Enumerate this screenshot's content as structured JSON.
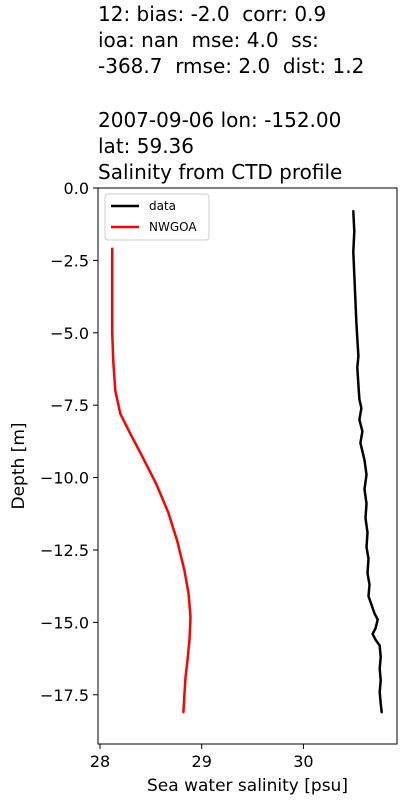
{
  "header": {
    "stats_line1": "12: bias: -2.0  corr: 0.9",
    "stats_line2": "ioa: nan  mse: 4.0  ss:",
    "stats_line3": "-368.7  rmse: 2.0  dist: 1.2",
    "date_line": "2007-09-06 lon: -152.00",
    "lat_line": "lat: 59.36",
    "subtitle": "Salinity from CTD profile"
  },
  "chart_data": {
    "type": "line",
    "xlabel": "Sea water salinity [psu]",
    "ylabel": "Depth [m]",
    "xlim": [
      27.98,
      30.92
    ],
    "ylim": [
      -19.2,
      0.0
    ],
    "xticks": [
      28,
      29,
      30
    ],
    "xtick_labels": [
      "28",
      "29",
      "30"
    ],
    "yticks": [
      0.0,
      -2.5,
      -5.0,
      -7.5,
      -10.0,
      -12.5,
      -15.0,
      -17.5
    ],
    "ytick_labels": [
      "0.0",
      "−2.5",
      "−5.0",
      "−7.5",
      "−10.0",
      "−12.5",
      "−15.0",
      "−17.5"
    ],
    "legend_position": "top-left",
    "series": [
      {
        "name": "data",
        "color": "#000000",
        "points": [
          [
            30.49,
            -0.8
          ],
          [
            30.5,
            -1.5
          ],
          [
            30.49,
            -2.2
          ],
          [
            30.5,
            -3.0
          ],
          [
            30.51,
            -3.8
          ],
          [
            30.52,
            -4.6
          ],
          [
            30.53,
            -5.2
          ],
          [
            30.54,
            -5.8
          ],
          [
            30.53,
            -6.2
          ],
          [
            30.54,
            -6.8
          ],
          [
            30.55,
            -7.3
          ],
          [
            30.57,
            -7.6
          ],
          [
            30.55,
            -8.0
          ],
          [
            30.58,
            -8.4
          ],
          [
            30.56,
            -8.8
          ],
          [
            30.6,
            -9.4
          ],
          [
            30.62,
            -9.9
          ],
          [
            30.6,
            -10.4
          ],
          [
            30.62,
            -10.9
          ],
          [
            30.61,
            -11.4
          ],
          [
            30.63,
            -11.9
          ],
          [
            30.62,
            -12.4
          ],
          [
            30.64,
            -12.8
          ],
          [
            30.63,
            -13.3
          ],
          [
            30.65,
            -13.7
          ],
          [
            30.64,
            -14.1
          ],
          [
            30.67,
            -14.4
          ],
          [
            30.7,
            -14.7
          ],
          [
            30.73,
            -14.9
          ],
          [
            30.71,
            -15.2
          ],
          [
            30.68,
            -15.4
          ],
          [
            30.71,
            -15.6
          ],
          [
            30.75,
            -15.8
          ],
          [
            30.76,
            -16.2
          ],
          [
            30.75,
            -16.6
          ],
          [
            30.76,
            -17.0
          ],
          [
            30.75,
            -17.4
          ],
          [
            30.76,
            -17.8
          ],
          [
            30.77,
            -18.1
          ]
        ]
      },
      {
        "name": "NWGOA",
        "color": "#ff0000",
        "points": [
          [
            28.12,
            -2.1
          ],
          [
            28.12,
            -3.5
          ],
          [
            28.12,
            -5.0
          ],
          [
            28.13,
            -6.0
          ],
          [
            28.15,
            -7.0
          ],
          [
            28.2,
            -7.8
          ],
          [
            28.3,
            -8.5
          ],
          [
            28.42,
            -9.3
          ],
          [
            28.55,
            -10.2
          ],
          [
            28.67,
            -11.2
          ],
          [
            28.76,
            -12.2
          ],
          [
            28.83,
            -13.2
          ],
          [
            28.87,
            -14.0
          ],
          [
            28.89,
            -14.8
          ],
          [
            28.88,
            -15.6
          ],
          [
            28.86,
            -16.3
          ],
          [
            28.84,
            -16.9
          ],
          [
            28.83,
            -17.5
          ],
          [
            28.82,
            -18.1
          ]
        ]
      }
    ]
  }
}
